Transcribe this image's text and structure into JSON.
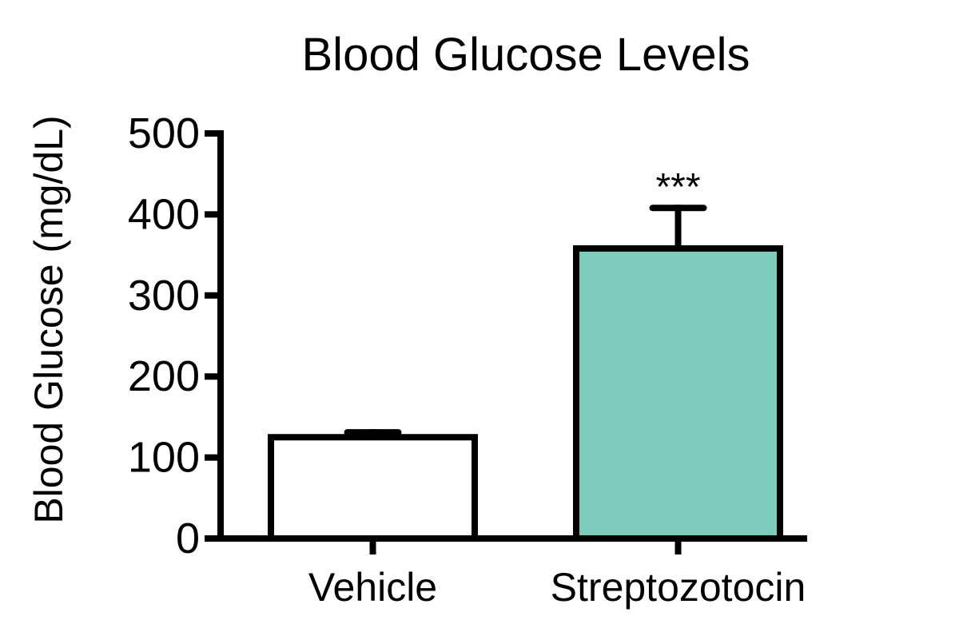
{
  "chart_data": {
    "type": "bar",
    "title": "Blood Glucose Levels",
    "xlabel": "",
    "ylabel": "Blood Glucose (mg/dL)",
    "ylim": [
      0,
      500
    ],
    "yticks": [
      "0",
      "100",
      "200",
      "300",
      "400",
      "500"
    ],
    "categories": [
      "Vehicle",
      "Streptozotocin"
    ],
    "values": [
      125,
      358
    ],
    "errors": [
      6,
      50
    ],
    "fill_colors": [
      "#ffffff",
      "#7dcbba"
    ],
    "annotations": [
      "",
      "***"
    ],
    "grid": false
  }
}
